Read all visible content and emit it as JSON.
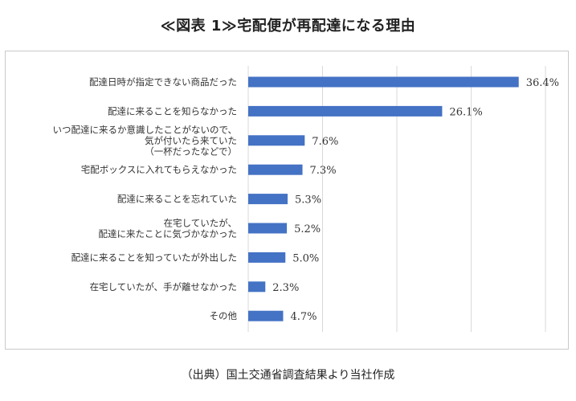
{
  "title": "≪図表 1≫宅配便が再配達になる理由",
  "source": "（出典）国土交通省調査結果より当社作成",
  "chart_data": {
    "type": "bar",
    "orientation": "horizontal",
    "title": "",
    "xlabel": "",
    "ylabel": "",
    "xlim": [
      0,
      40
    ],
    "grid": "vertical",
    "legend": "none",
    "bar_color": "#4472c4",
    "grid_color": "#d9d9d9",
    "categories": [
      [
        "配達日時が指定できない商品だった"
      ],
      [
        "配達に来ることを知らなかった"
      ],
      [
        "いつ配達に来るか意識したことがないので、",
        "気が付いたら来ていた",
        "（一杯だったなどで）"
      ],
      [
        "宅配ボックスに入れてもらえなかった"
      ],
      [
        "配達に来ることを忘れていた"
      ],
      [
        "在宅していたが、",
        "配達に来たことに気づかなかった"
      ],
      [
        "配達に来ることを知っていたが外出した"
      ],
      [
        "在宅していたが、手が離せなかった"
      ],
      [
        "その他"
      ]
    ],
    "values": [
      36.4,
      26.1,
      7.6,
      7.3,
      5.3,
      5.2,
      5.0,
      2.3,
      4.7
    ],
    "value_labels": [
      "36.4%",
      "26.1%",
      "7.6%",
      "7.3%",
      "5.3%",
      "5.2%",
      "5.0%",
      "2.3%",
      "4.7%"
    ]
  }
}
